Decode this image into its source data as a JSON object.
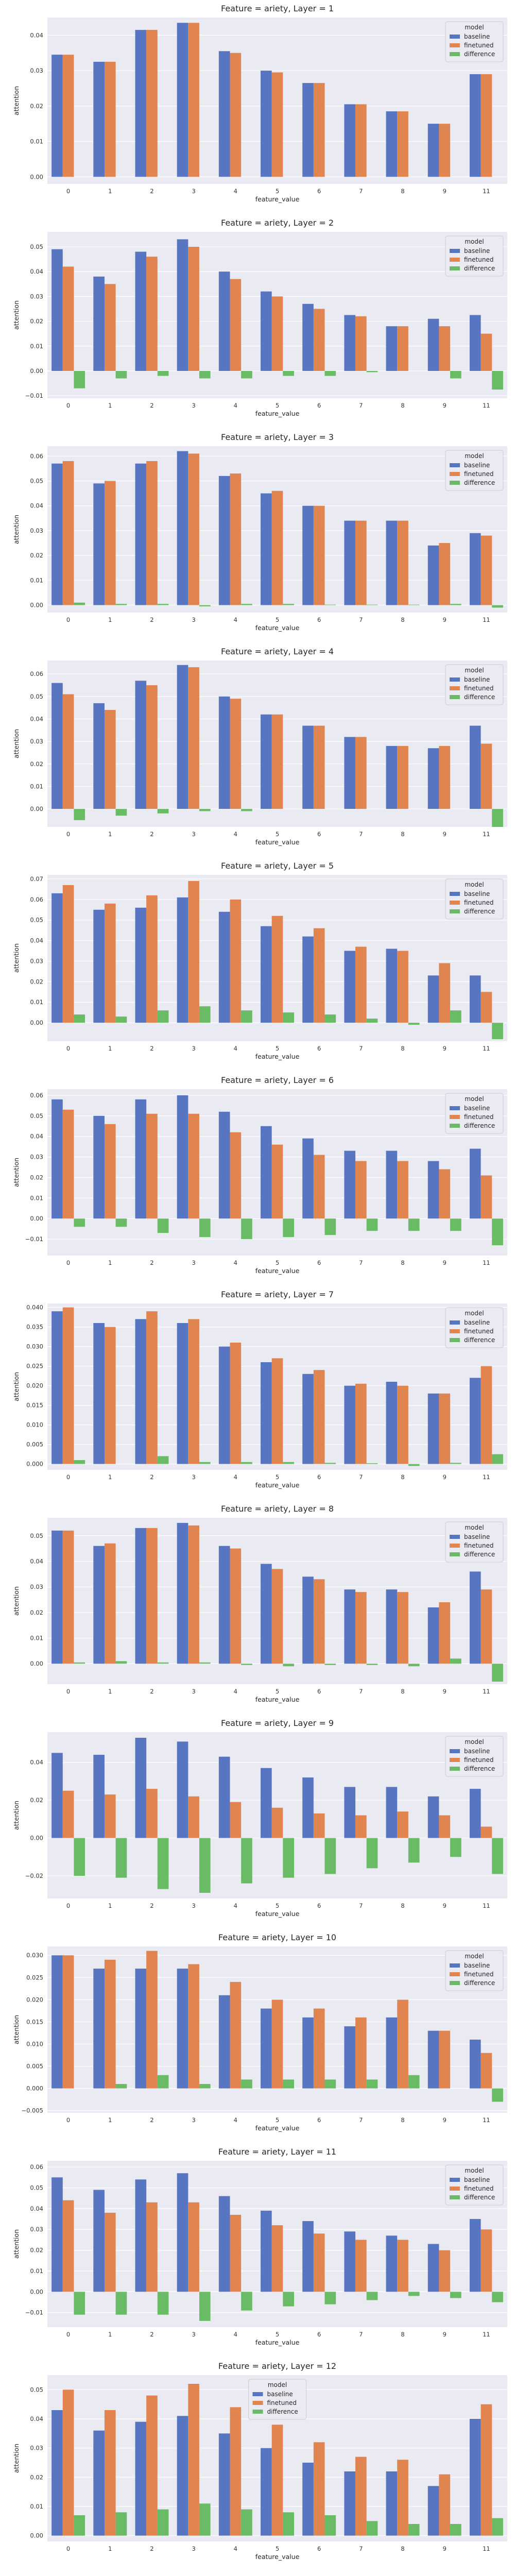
{
  "colors": {
    "baseline": "#5875c2",
    "finetuned": "#e08450",
    "difference": "#6abb66",
    "plot_bg": "#eaeaf2",
    "grid": "#ffffff"
  },
  "chart_data": [
    {
      "type": "bar",
      "title": "Feature = ariety, Layer = 1",
      "xlabel": "feature_value",
      "ylabel": "attention",
      "legend_title": "model",
      "legend_loc": "top-right",
      "grid": true,
      "categories": [
        "0",
        "1",
        "2",
        "3",
        "4",
        "5",
        "6",
        "7",
        "8",
        "9",
        "11"
      ],
      "ylim": [
        -0.002,
        0.045
      ],
      "yticks": [
        0.0,
        0.01,
        0.02,
        0.03,
        0.04
      ],
      "tick_format": "0.00",
      "series": [
        {
          "name": "baseline",
          "values": [
            0.0345,
            0.0325,
            0.0415,
            0.0435,
            0.0355,
            0.03,
            0.0265,
            0.0205,
            0.0185,
            0.015,
            0.029
          ]
        },
        {
          "name": "finetuned",
          "values": [
            0.0345,
            0.0325,
            0.0415,
            0.0435,
            0.035,
            0.0295,
            0.0265,
            0.0205,
            0.0185,
            0.015,
            0.029
          ]
        },
        {
          "name": "difference",
          "values": [
            0,
            0,
            0,
            0,
            0,
            0,
            0,
            0,
            0,
            0,
            0
          ]
        }
      ]
    },
    {
      "type": "bar",
      "title": "Feature = ariety, Layer = 2",
      "xlabel": "feature_value",
      "ylabel": "attention",
      "legend_title": "model",
      "legend_loc": "top-right",
      "grid": true,
      "categories": [
        "0",
        "1",
        "2",
        "3",
        "4",
        "5",
        "6",
        "7",
        "8",
        "9",
        "11"
      ],
      "ylim": [
        -0.011,
        0.056
      ],
      "yticks": [
        -0.01,
        0.0,
        0.01,
        0.02,
        0.03,
        0.04,
        0.05
      ],
      "tick_format": "0.00",
      "series": [
        {
          "name": "baseline",
          "values": [
            0.049,
            0.038,
            0.048,
            0.053,
            0.04,
            0.032,
            0.027,
            0.0225,
            0.018,
            0.021,
            0.0225
          ]
        },
        {
          "name": "finetuned",
          "values": [
            0.042,
            0.035,
            0.046,
            0.05,
            0.037,
            0.03,
            0.025,
            0.022,
            0.018,
            0.018,
            0.015
          ]
        },
        {
          "name": "difference",
          "values": [
            -0.007,
            -0.003,
            -0.002,
            -0.003,
            -0.003,
            -0.002,
            -0.002,
            -0.0005,
            0,
            -0.003,
            -0.0075
          ]
        }
      ]
    },
    {
      "type": "bar",
      "title": "Feature = ariety, Layer = 3",
      "xlabel": "feature_value",
      "ylabel": "attention",
      "legend_title": "model",
      "legend_loc": "top-right",
      "grid": true,
      "categories": [
        "0",
        "1",
        "2",
        "3",
        "4",
        "5",
        "6",
        "7",
        "8",
        "9",
        "11"
      ],
      "ylim": [
        -0.003,
        0.064
      ],
      "yticks": [
        0.0,
        0.01,
        0.02,
        0.03,
        0.04,
        0.05,
        0.06
      ],
      "tick_format": "0.00",
      "series": [
        {
          "name": "baseline",
          "values": [
            0.057,
            0.049,
            0.057,
            0.062,
            0.052,
            0.045,
            0.04,
            0.034,
            0.034,
            0.024,
            0.029
          ]
        },
        {
          "name": "finetuned",
          "values": [
            0.058,
            0.05,
            0.058,
            0.061,
            0.053,
            0.046,
            0.04,
            0.034,
            0.034,
            0.025,
            0.028
          ]
        },
        {
          "name": "difference",
          "values": [
            0.001,
            0.0005,
            0.0005,
            -0.0005,
            0.0005,
            0.0005,
            0.0002,
            0.0002,
            0.0002,
            0.0005,
            -0.001
          ]
        }
      ]
    },
    {
      "type": "bar",
      "title": "Feature = ariety, Layer = 4",
      "xlabel": "feature_value",
      "ylabel": "attention",
      "legend_title": "model",
      "legend_loc": "top-right",
      "grid": true,
      "categories": [
        "0",
        "1",
        "2",
        "3",
        "4",
        "5",
        "6",
        "7",
        "8",
        "9",
        "11"
      ],
      "ylim": [
        -0.008,
        0.066
      ],
      "yticks": [
        0.0,
        0.01,
        0.02,
        0.03,
        0.04,
        0.05,
        0.06
      ],
      "tick_format": "0.00",
      "series": [
        {
          "name": "baseline",
          "values": [
            0.056,
            0.047,
            0.057,
            0.064,
            0.05,
            0.042,
            0.037,
            0.032,
            0.028,
            0.027,
            0.037
          ]
        },
        {
          "name": "finetuned",
          "values": [
            0.051,
            0.044,
            0.055,
            0.063,
            0.049,
            0.042,
            0.037,
            0.032,
            0.028,
            0.028,
            0.029
          ]
        },
        {
          "name": "difference",
          "values": [
            -0.005,
            -0.003,
            -0.002,
            -0.001,
            -0.001,
            0,
            0,
            0,
            0,
            0,
            -0.008
          ]
        }
      ]
    },
    {
      "type": "bar",
      "title": "Feature = ariety, Layer = 5",
      "xlabel": "feature_value",
      "ylabel": "attention",
      "legend_title": "model",
      "legend_loc": "top-right",
      "grid": true,
      "categories": [
        "0",
        "1",
        "2",
        "3",
        "4",
        "5",
        "6",
        "7",
        "8",
        "9",
        "11"
      ],
      "ylim": [
        -0.009,
        0.072
      ],
      "yticks": [
        0.0,
        0.01,
        0.02,
        0.03,
        0.04,
        0.05,
        0.06,
        0.07
      ],
      "tick_format": "0.00",
      "series": [
        {
          "name": "baseline",
          "values": [
            0.063,
            0.055,
            0.056,
            0.061,
            0.054,
            0.047,
            0.042,
            0.035,
            0.036,
            0.023,
            0.023
          ]
        },
        {
          "name": "finetuned",
          "values": [
            0.067,
            0.058,
            0.062,
            0.069,
            0.06,
            0.052,
            0.046,
            0.037,
            0.035,
            0.029,
            0.015
          ]
        },
        {
          "name": "difference",
          "values": [
            0.004,
            0.003,
            0.006,
            0.008,
            0.006,
            0.005,
            0.004,
            0.002,
            -0.001,
            0.006,
            -0.008
          ]
        }
      ]
    },
    {
      "type": "bar",
      "title": "Feature = ariety, Layer = 6",
      "xlabel": "feature_value",
      "ylabel": "attention",
      "legend_title": "model",
      "legend_loc": "top-right",
      "grid": true,
      "categories": [
        "0",
        "1",
        "2",
        "3",
        "4",
        "5",
        "6",
        "7",
        "8",
        "9",
        "11"
      ],
      "ylim": [
        -0.018,
        0.063
      ],
      "yticks": [
        -0.01,
        0.0,
        0.01,
        0.02,
        0.03,
        0.04,
        0.05,
        0.06
      ],
      "tick_format": "0.00",
      "series": [
        {
          "name": "baseline",
          "values": [
            0.058,
            0.05,
            0.058,
            0.06,
            0.052,
            0.045,
            0.039,
            0.033,
            0.033,
            0.028,
            0.034
          ]
        },
        {
          "name": "finetuned",
          "values": [
            0.053,
            0.046,
            0.051,
            0.051,
            0.042,
            0.036,
            0.031,
            0.028,
            0.028,
            0.024,
            0.021
          ]
        },
        {
          "name": "difference",
          "values": [
            -0.004,
            -0.004,
            -0.007,
            -0.009,
            -0.01,
            -0.009,
            -0.008,
            -0.006,
            -0.006,
            -0.006,
            -0.013
          ]
        }
      ]
    },
    {
      "type": "bar",
      "title": "Feature = ariety, Layer = 7",
      "xlabel": "feature_value",
      "ylabel": "attention",
      "legend_title": "model",
      "legend_loc": "top-right",
      "grid": true,
      "categories": [
        "0",
        "1",
        "2",
        "3",
        "4",
        "5",
        "6",
        "7",
        "8",
        "9",
        "11"
      ],
      "ylim": [
        -0.0015,
        0.041
      ],
      "yticks": [
        0.0,
        0.005,
        0.01,
        0.015,
        0.02,
        0.025,
        0.03,
        0.035,
        0.04
      ],
      "tick_format": "0.000",
      "series": [
        {
          "name": "baseline",
          "values": [
            0.039,
            0.036,
            0.037,
            0.036,
            0.03,
            0.026,
            0.023,
            0.02,
            0.021,
            0.018,
            0.022
          ]
        },
        {
          "name": "finetuned",
          "values": [
            0.04,
            0.035,
            0.039,
            0.037,
            0.031,
            0.027,
            0.024,
            0.0205,
            0.02,
            0.018,
            0.025
          ]
        },
        {
          "name": "difference",
          "values": [
            0.001,
            0,
            0.002,
            0.0005,
            0.0005,
            0.0005,
            0.0003,
            0.0002,
            -0.0005,
            0.0003,
            0.0025
          ]
        }
      ]
    },
    {
      "type": "bar",
      "title": "Feature = ariety, Layer = 8",
      "xlabel": "feature_value",
      "ylabel": "attention",
      "legend_title": "model",
      "legend_loc": "top-right",
      "grid": true,
      "categories": [
        "0",
        "1",
        "2",
        "3",
        "4",
        "5",
        "6",
        "7",
        "8",
        "9",
        "11"
      ],
      "ylim": [
        -0.008,
        0.057
      ],
      "yticks": [
        0.0,
        0.01,
        0.02,
        0.03,
        0.04,
        0.05
      ],
      "tick_format": "0.00",
      "series": [
        {
          "name": "baseline",
          "values": [
            0.052,
            0.046,
            0.053,
            0.055,
            0.046,
            0.039,
            0.034,
            0.029,
            0.029,
            0.022,
            0.036
          ]
        },
        {
          "name": "finetuned",
          "values": [
            0.052,
            0.047,
            0.053,
            0.054,
            0.045,
            0.037,
            0.033,
            0.028,
            0.028,
            0.024,
            0.029
          ]
        },
        {
          "name": "difference",
          "values": [
            0.0005,
            0.001,
            0.0005,
            0.0005,
            -0.0005,
            -0.001,
            -0.0005,
            -0.0005,
            -0.001,
            0.002,
            -0.007
          ]
        }
      ]
    },
    {
      "type": "bar",
      "title": "Feature = ariety, Layer = 9",
      "xlabel": "feature_value",
      "ylabel": "attention",
      "legend_title": "model",
      "legend_loc": "top-right",
      "grid": true,
      "categories": [
        "0",
        "1",
        "2",
        "3",
        "4",
        "5",
        "6",
        "7",
        "8",
        "9",
        "11"
      ],
      "ylim": [
        -0.032,
        0.056
      ],
      "yticks": [
        -0.02,
        0.0,
        0.02,
        0.04
      ],
      "tick_format": "0.00",
      "series": [
        {
          "name": "baseline",
          "values": [
            0.045,
            0.044,
            0.053,
            0.051,
            0.043,
            0.037,
            0.032,
            0.027,
            0.027,
            0.022,
            0.026
          ]
        },
        {
          "name": "finetuned",
          "values": [
            0.025,
            0.023,
            0.026,
            0.022,
            0.019,
            0.016,
            0.013,
            0.012,
            0.014,
            0.012,
            0.006
          ]
        },
        {
          "name": "difference",
          "values": [
            -0.02,
            -0.021,
            -0.027,
            -0.029,
            -0.024,
            -0.021,
            -0.019,
            -0.016,
            -0.013,
            -0.01,
            -0.019
          ]
        }
      ]
    },
    {
      "type": "bar",
      "title": "Feature = ariety, Layer = 10",
      "xlabel": "feature_value",
      "ylabel": "attention",
      "legend_title": "model",
      "legend_loc": "top-right",
      "grid": true,
      "categories": [
        "0",
        "1",
        "2",
        "3",
        "4",
        "5",
        "6",
        "7",
        "8",
        "9",
        "11"
      ],
      "ylim": [
        -0.0055,
        0.032
      ],
      "yticks": [
        -0.005,
        0.0,
        0.005,
        0.01,
        0.015,
        0.02,
        0.025,
        0.03
      ],
      "tick_format": "0.000",
      "series": [
        {
          "name": "baseline",
          "values": [
            0.03,
            0.027,
            0.027,
            0.027,
            0.021,
            0.018,
            0.016,
            0.014,
            0.016,
            0.013,
            0.011
          ]
        },
        {
          "name": "finetuned",
          "values": [
            0.03,
            0.029,
            0.031,
            0.028,
            0.024,
            0.02,
            0.018,
            0.016,
            0.02,
            0.013,
            0.008
          ]
        },
        {
          "name": "difference",
          "values": [
            0,
            0.001,
            0.003,
            0.001,
            0.002,
            0.002,
            0.002,
            0.002,
            0.003,
            0,
            -0.003
          ]
        }
      ]
    },
    {
      "type": "bar",
      "title": "Feature = ariety, Layer = 11",
      "xlabel": "feature_value",
      "ylabel": "attention",
      "legend_title": "model",
      "legend_loc": "top-right",
      "grid": true,
      "categories": [
        "0",
        "1",
        "2",
        "3",
        "4",
        "5",
        "6",
        "7",
        "8",
        "9",
        "11"
      ],
      "ylim": [
        -0.017,
        0.063
      ],
      "yticks": [
        -0.01,
        0.0,
        0.01,
        0.02,
        0.03,
        0.04,
        0.05,
        0.06
      ],
      "tick_format": "0.00",
      "series": [
        {
          "name": "baseline",
          "values": [
            0.055,
            0.049,
            0.054,
            0.057,
            0.046,
            0.039,
            0.034,
            0.029,
            0.027,
            0.023,
            0.035
          ]
        },
        {
          "name": "finetuned",
          "values": [
            0.044,
            0.038,
            0.043,
            0.043,
            0.037,
            0.032,
            0.028,
            0.025,
            0.025,
            0.02,
            0.03
          ]
        },
        {
          "name": "difference",
          "values": [
            -0.011,
            -0.011,
            -0.011,
            -0.014,
            -0.009,
            -0.007,
            -0.006,
            -0.004,
            -0.002,
            -0.003,
            -0.005
          ]
        }
      ]
    },
    {
      "type": "bar",
      "title": "Feature = ariety, Layer = 12",
      "xlabel": "feature_value",
      "ylabel": "attention",
      "legend_title": "model",
      "legend_loc": "top-center",
      "grid": true,
      "categories": [
        "0",
        "1",
        "2",
        "3",
        "4",
        "5",
        "6",
        "7",
        "8",
        "9",
        "11"
      ],
      "ylim": [
        -0.002,
        0.055
      ],
      "yticks": [
        0.0,
        0.01,
        0.02,
        0.03,
        0.04,
        0.05
      ],
      "tick_format": "0.00",
      "series": [
        {
          "name": "baseline",
          "values": [
            0.043,
            0.036,
            0.039,
            0.041,
            0.035,
            0.03,
            0.025,
            0.022,
            0.022,
            0.017,
            0.04
          ]
        },
        {
          "name": "finetuned",
          "values": [
            0.05,
            0.043,
            0.048,
            0.052,
            0.044,
            0.038,
            0.032,
            0.027,
            0.026,
            0.021,
            0.045
          ]
        },
        {
          "name": "difference",
          "values": [
            0.007,
            0.008,
            0.009,
            0.011,
            0.009,
            0.008,
            0.007,
            0.005,
            0.004,
            0.004,
            0.006
          ]
        }
      ]
    }
  ]
}
